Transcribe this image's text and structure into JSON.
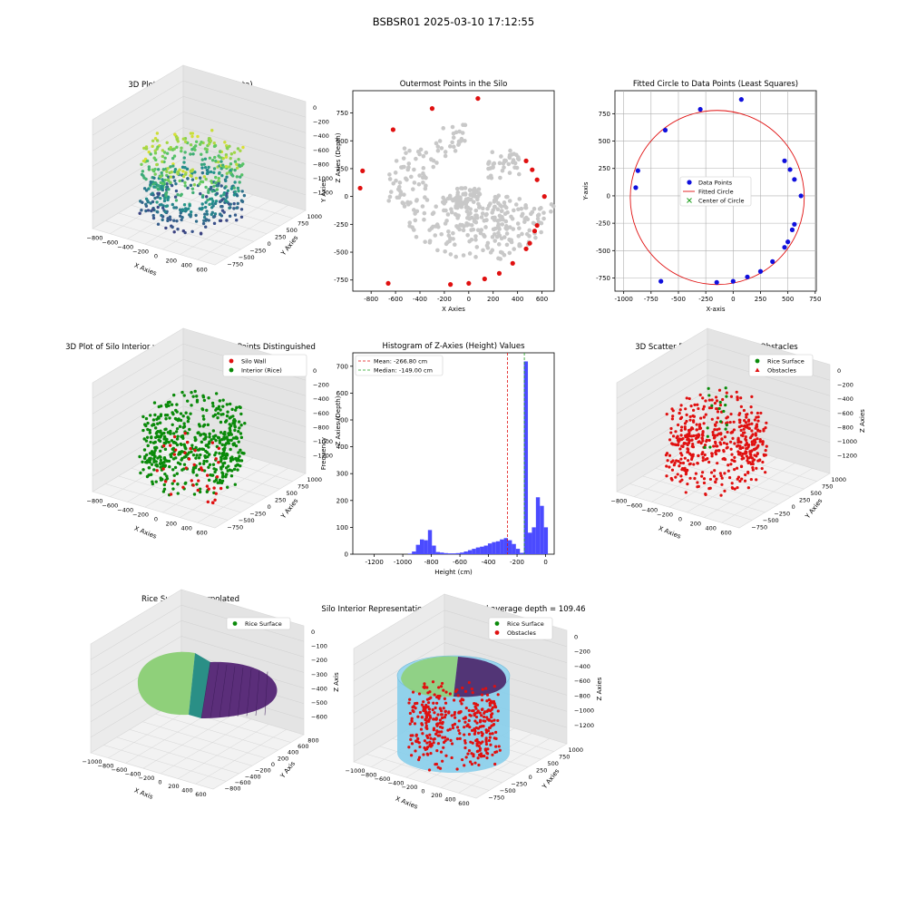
{
  "suptitle": "BSBSR01 2025-03-10 17:12:55",
  "colors": {
    "wall_red": "#e01010",
    "rice_green": "#0a8a0a",
    "gray_points": "#c8c8c8",
    "blue_points": "#1010dd",
    "hist_blue": "#4b4bff",
    "mean_line": "#e01010",
    "median_line": "#20a020",
    "silo_sky": "#87ceeb",
    "viridis": [
      "#440154",
      "#3b528b",
      "#21918c",
      "#5ec962",
      "#fde725"
    ]
  },
  "chart_data": [
    {
      "id": "p1",
      "type": "scatter",
      "projection": "3d",
      "title": "3D Plot of Silo Interior(row data)",
      "xlabel": "X Axies",
      "ylabel": "Y Axies",
      "zlabel": "Z Axies (Depth)",
      "xticks": [
        "−800",
        "−600",
        "−400",
        "−200",
        "0",
        "200",
        "400",
        "600"
      ],
      "yticks": [
        "−750",
        "−500",
        "−250",
        "0",
        "250",
        "500",
        "750",
        "1000"
      ],
      "zticks": [
        "0",
        "−200",
        "−400",
        "−600",
        "−800",
        "−1000",
        "−1200"
      ],
      "colormap": "viridis"
    },
    {
      "id": "p2",
      "type": "scatter",
      "title": "Outermost Points in the Silo",
      "xlabel": "X Axies",
      "ylabel": "Y Axies",
      "xlim": [
        -950,
        700
      ],
      "ylim": [
        -850,
        950
      ],
      "xticks": [
        -800,
        -600,
        -400,
        -200,
        0,
        200,
        400,
        600
      ],
      "yticks": [
        -750,
        -500,
        -250,
        0,
        250,
        500,
        750
      ],
      "outermost_points": [
        [
          75,
          880
        ],
        [
          -300,
          790
        ],
        [
          -620,
          600
        ],
        [
          -870,
          230
        ],
        [
          -890,
          75
        ],
        [
          -660,
          -780
        ],
        [
          -150,
          -790
        ],
        [
          0,
          -780
        ],
        [
          130,
          -740
        ],
        [
          250,
          -690
        ],
        [
          360,
          -600
        ],
        [
          470,
          -470
        ],
        [
          500,
          -420
        ],
        [
          540,
          -310
        ],
        [
          560,
          -260
        ],
        [
          620,
          0
        ],
        [
          560,
          150
        ],
        [
          520,
          240
        ],
        [
          470,
          320
        ]
      ]
    },
    {
      "id": "p3",
      "type": "scatter",
      "title": "Fitted Circle to Data Points (Least Squares)",
      "xlabel": "X-axis",
      "ylabel": "Y-axis",
      "xlim": [
        -1080,
        760
      ],
      "ylim": [
        -870,
        960
      ],
      "xticks": [
        -1000,
        -750,
        -500,
        -250,
        0,
        250,
        500,
        750
      ],
      "yticks": [
        -750,
        -500,
        -250,
        0,
        250,
        500,
        750
      ],
      "legend": [
        "Data Points",
        "Fitted Circle",
        "Center of Circle"
      ],
      "points": [
        [
          75,
          880
        ],
        [
          -300,
          790
        ],
        [
          -620,
          600
        ],
        [
          -870,
          230
        ],
        [
          -890,
          75
        ],
        [
          -660,
          -780
        ],
        [
          -150,
          -790
        ],
        [
          0,
          -780
        ],
        [
          130,
          -740
        ],
        [
          250,
          -690
        ],
        [
          360,
          -600
        ],
        [
          470,
          -470
        ],
        [
          500,
          -420
        ],
        [
          540,
          -310
        ],
        [
          560,
          -260
        ],
        [
          620,
          0
        ],
        [
          560,
          150
        ],
        [
          520,
          240
        ],
        [
          470,
          320
        ]
      ],
      "circle": {
        "cx": -145,
        "cy": -15,
        "r": 795
      },
      "grid": true
    },
    {
      "id": "p4",
      "type": "scatter",
      "projection": "3d",
      "title": "3D Plot of Silo Interior with Wall and Interior Points Distinguished",
      "xlabel": "X Axies",
      "ylabel": "Y Axies",
      "zlabel": "Z Axies (Depth)",
      "xticks": [
        "−800",
        "−600",
        "−400",
        "−200",
        "0",
        "200",
        "400",
        "600"
      ],
      "yticks": [
        "−750",
        "−500",
        "−250",
        "0",
        "250",
        "500",
        "750",
        "1000"
      ],
      "zticks": [
        "0",
        "−200",
        "−400",
        "−600",
        "−800",
        "−1000",
        "−1200"
      ],
      "legend": [
        "Silo Wall",
        "Interior (Rice)"
      ]
    },
    {
      "id": "p5",
      "type": "bar",
      "title": "Histogram of Z-Axies (Height) Values",
      "xlabel": "Height (cm)",
      "ylabel": "Frequency",
      "xlim": [
        -1350,
        60
      ],
      "ylim": [
        0,
        750
      ],
      "xticks": [
        -1200,
        -1000,
        -800,
        -600,
        -400,
        -200,
        0
      ],
      "yticks": [
        0,
        100,
        200,
        300,
        400,
        500,
        600,
        700
      ],
      "bin_width": 28,
      "bins": [
        [
          -1300,
          0
        ],
        [
          -1272,
          0
        ],
        [
          -1244,
          0
        ],
        [
          -1216,
          0
        ],
        [
          -1188,
          0
        ],
        [
          -1160,
          0
        ],
        [
          -1132,
          0
        ],
        [
          -1104,
          0
        ],
        [
          -1076,
          0
        ],
        [
          -1048,
          0
        ],
        [
          -1020,
          0
        ],
        [
          -992,
          0
        ],
        [
          -964,
          2
        ],
        [
          -936,
          10
        ],
        [
          -908,
          35
        ],
        [
          -880,
          55
        ],
        [
          -852,
          52
        ],
        [
          -824,
          90
        ],
        [
          -796,
          32
        ],
        [
          -768,
          8
        ],
        [
          -740,
          6
        ],
        [
          -712,
          4
        ],
        [
          -684,
          3
        ],
        [
          -656,
          3
        ],
        [
          -628,
          4
        ],
        [
          -600,
          6
        ],
        [
          -572,
          10
        ],
        [
          -544,
          15
        ],
        [
          -516,
          20
        ],
        [
          -488,
          25
        ],
        [
          -460,
          28
        ],
        [
          -432,
          32
        ],
        [
          -404,
          40
        ],
        [
          -376,
          45
        ],
        [
          -348,
          48
        ],
        [
          -320,
          55
        ],
        [
          -292,
          60
        ],
        [
          -264,
          52
        ],
        [
          -236,
          38
        ],
        [
          -208,
          20
        ],
        [
          -180,
          5
        ],
        [
          -152,
          718
        ],
        [
          -124,
          80
        ],
        [
          -96,
          100
        ],
        [
          -68,
          212
        ],
        [
          -40,
          180
        ],
        [
          -12,
          100
        ]
      ],
      "legend": [
        "Mean: -266.80 cm",
        "Median: -149.00 cm"
      ],
      "mean": -266.8,
      "median": -149.0
    },
    {
      "id": "p6",
      "type": "scatter",
      "projection": "3d",
      "title": "3D Scatter Plot: Rice Surface vs Obstacles",
      "xlabel": "X Axies",
      "ylabel": "Y Axies",
      "zlabel": "Z Axies",
      "xticks": [
        "−800",
        "−600",
        "−400",
        "−200",
        "0",
        "200",
        "400",
        "600"
      ],
      "yticks": [
        "−750",
        "−500",
        "−250",
        "0",
        "250",
        "500",
        "750",
        "1000"
      ],
      "zticks": [
        "0",
        "−200",
        "−400",
        "−600",
        "−800",
        "−1000",
        "−1200"
      ],
      "legend": [
        "Rice Surface",
        "Obstacles"
      ]
    },
    {
      "id": "p7",
      "type": "area",
      "projection": "3d",
      "title": "Rice Surface Interpolated",
      "title2": "depth = 109.46",
      "xlabel": "X Axis",
      "ylabel": "Y Axis",
      "zlabel": "Z Axis",
      "xticks": [
        "−1000",
        "−800",
        "−600",
        "−400",
        "−200",
        "0",
        "200",
        "400",
        "600"
      ],
      "yticks": [
        "−800",
        "−600",
        "−400",
        "−200",
        "0",
        "200",
        "400",
        "600",
        "800"
      ],
      "zticks": [
        "0",
        "−100",
        "−200",
        "−300",
        "−400",
        "−500",
        "−600"
      ],
      "legend": [
        "Rice Surface"
      ]
    },
    {
      "id": "p8",
      "type": "scatter",
      "projection": "3d",
      "title": "Silo Interior Representation using weighted average depth = 109.46",
      "xlabel": "X Axies",
      "ylabel": "Y Axies",
      "zlabel": "Z Axies",
      "xticks": [
        "−1000",
        "−800",
        "−600",
        "−400",
        "−200",
        "0",
        "200",
        "400",
        "600"
      ],
      "yticks": [
        "−750",
        "−500",
        "−250",
        "0",
        "250",
        "500",
        "750",
        "1000"
      ],
      "zticks": [
        "0",
        "−200",
        "−400",
        "−600",
        "−800",
        "−1000",
        "−1200"
      ],
      "legend": [
        "Rice Surface",
        "Obstacles"
      ]
    }
  ]
}
